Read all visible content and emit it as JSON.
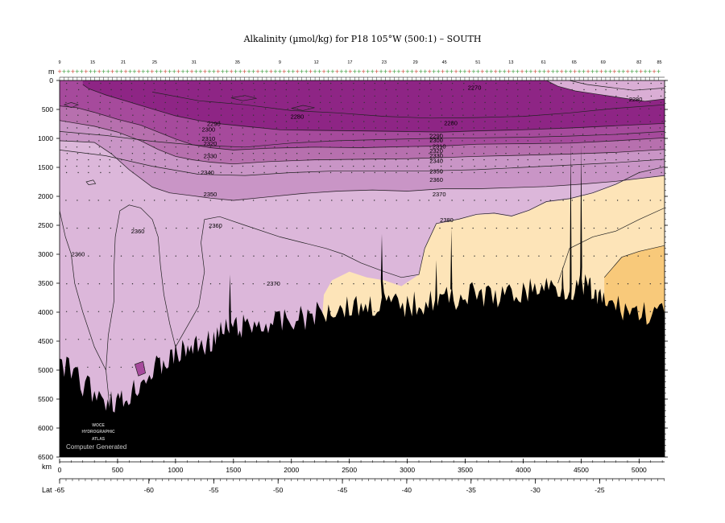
{
  "chart_data": {
    "type": "heatmap",
    "title": "Alkalinity (µmol/kg) for P18 105°W (500:1) – SOUTH",
    "xlabel": "km",
    "ylabel": "m",
    "secondary_xlabel": "Lat",
    "xlim": [
      0,
      5220
    ],
    "ylim": [
      6500,
      0
    ],
    "x_ticks": [
      0,
      500,
      1000,
      1500,
      2000,
      2500,
      3000,
      3500,
      4000,
      4500,
      5000
    ],
    "y_ticks": [
      0,
      500,
      1000,
      1500,
      2000,
      2500,
      3000,
      3500,
      4000,
      4500,
      5000,
      5500,
      6000,
      6500
    ],
    "lat_ticks": [
      {
        "label": "-65",
        "km": 0
      },
      {
        "label": "-60",
        "km": 770
      },
      {
        "label": "-55",
        "km": 1330
      },
      {
        "label": "-50",
        "km": 1885
      },
      {
        "label": "-45",
        "km": 2440
      },
      {
        "label": "-40",
        "km": 2995
      },
      {
        "label": "-35",
        "km": 3550
      },
      {
        "label": "-30",
        "km": 4105
      },
      {
        "label": "-25",
        "km": 4660
      }
    ],
    "station_labels": [
      {
        "label": "9",
        "km": 0
      },
      {
        "label": "15",
        "km": 285
      },
      {
        "label": "21",
        "km": 550
      },
      {
        "label": "25",
        "km": 820
      },
      {
        "label": "31",
        "km": 1160
      },
      {
        "label": "35",
        "km": 1535
      },
      {
        "label": "9",
        "km": 1900
      },
      {
        "label": "12",
        "km": 2215
      },
      {
        "label": "17",
        "km": 2505
      },
      {
        "label": "23",
        "km": 2800
      },
      {
        "label": "29",
        "km": 3070
      },
      {
        "label": "45",
        "km": 3320
      },
      {
        "label": "51",
        "km": 3610
      },
      {
        "label": "13",
        "km": 3895
      },
      {
        "label": "61",
        "km": 4175
      },
      {
        "label": "65",
        "km": 4440
      },
      {
        "label": "69",
        "km": 4690
      },
      {
        "label": "82",
        "km": 5000
      },
      {
        "label": "85",
        "km": 5175
      }
    ],
    "contour_levels": [
      2270,
      2280,
      2290,
      2300,
      2310,
      2320,
      2330,
      2340,
      2350,
      2360,
      2370,
      2380
    ],
    "contour_labels": [
      {
        "text": "2270",
        "km": 3580,
        "depth": 120
      },
      {
        "text": "2280",
        "km": 4970,
        "depth": 320
      },
      {
        "text": "2280",
        "km": 2050,
        "depth": 620
      },
      {
        "text": "2280",
        "km": 3375,
        "depth": 730
      },
      {
        "text": "2290",
        "km": 1330,
        "depth": 740
      },
      {
        "text": "2300",
        "km": 1285,
        "depth": 840
      },
      {
        "text": "2310",
        "km": 1285,
        "depth": 1000
      },
      {
        "text": "2320",
        "km": 1300,
        "depth": 1080
      },
      {
        "text": "2290",
        "km": 3250,
        "depth": 950
      },
      {
        "text": "2300",
        "km": 3250,
        "depth": 1030
      },
      {
        "text": "2310",
        "km": 3275,
        "depth": 1130
      },
      {
        "text": "2320",
        "km": 3250,
        "depth": 1210
      },
      {
        "text": "2330",
        "km": 3250,
        "depth": 1290
      },
      {
        "text": "2340",
        "km": 3250,
        "depth": 1380
      },
      {
        "text": "2330",
        "km": 1300,
        "depth": 1300
      },
      {
        "text": "2340",
        "km": 1275,
        "depth": 1580
      },
      {
        "text": "2350",
        "km": 3250,
        "depth": 1560
      },
      {
        "text": "2360",
        "km": 3250,
        "depth": 1710
      },
      {
        "text": "2350",
        "km": 1300,
        "depth": 1960
      },
      {
        "text": "2370",
        "km": 3275,
        "depth": 1960
      },
      {
        "text": "2360",
        "km": 1345,
        "depth": 2500
      },
      {
        "text": "2360",
        "km": 675,
        "depth": 2600
      },
      {
        "text": "2380",
        "km": 3340,
        "depth": 2400
      },
      {
        "text": "2360",
        "km": 160,
        "depth": 2990
      },
      {
        "text": "2370",
        "km": 1845,
        "depth": 3500
      }
    ],
    "fill_bands": [
      {
        "name": "lt2280",
        "color": "#8e2585"
      },
      {
        "name": "2280-2300",
        "color": "#a64a9c"
      },
      {
        "name": "2300-2330",
        "color": "#b770ae"
      },
      {
        "name": "2330-2350",
        "color": "#c995c6"
      },
      {
        "name": "2350-2370",
        "color": "#dcb7da"
      },
      {
        "name": "2370-2380",
        "color": "#d4b1d6"
      },
      {
        "name": "2380-2390",
        "color": "#fde4b8"
      },
      {
        "name": "gt2390",
        "color": "#f8c97a"
      }
    ],
    "bottom_color": "#000000",
    "grid": false
  },
  "credits": {
    "logo_lines": [
      "WOCE",
      "HYDROGRAPHIC",
      "ATLAS"
    ],
    "computer_generated": "Computer Generated"
  }
}
